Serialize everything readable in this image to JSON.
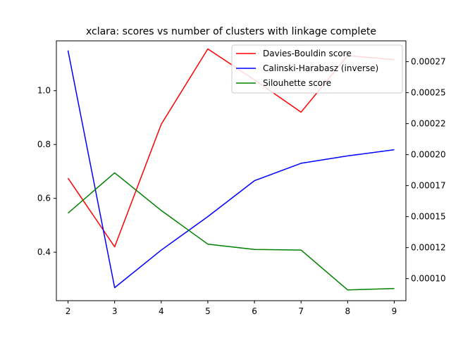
{
  "chart_data": {
    "type": "line",
    "title": "xclara: scores vs number of clusters with linkage complete",
    "x": [
      2,
      3,
      4,
      5,
      6,
      7,
      8,
      9
    ],
    "x_ticks": [
      "2",
      "3",
      "4",
      "5",
      "6",
      "7",
      "8",
      "9"
    ],
    "xlim": [
      1.75,
      9.25
    ],
    "left_axis": {
      "ylim": [
        0.22,
        1.185
      ],
      "ticks": [
        0.4,
        0.6,
        0.8,
        1.0
      ],
      "tick_labels": [
        "0.4",
        "0.6",
        "0.8",
        "1.0"
      ]
    },
    "right_axis": {
      "ylim": [
        8.22e-05,
        0.0002918
      ],
      "ticks": [
        0.0001,
        0.000125,
        0.00015,
        0.000175,
        0.0002,
        0.000225,
        0.00025,
        0.000275
      ],
      "tick_labels": [
        "0.00010",
        "0.00012",
        "0.00015",
        "0.00017",
        "0.00020",
        "0.00022",
        "0.00025",
        "0.00027"
      ]
    },
    "series": [
      {
        "name": "Davies-Bouldin score",
        "color": "#ff0000",
        "axis": "left",
        "values": [
          0.675,
          0.42,
          0.875,
          1.155,
          1.04,
          0.92,
          1.13,
          1.115
        ]
      },
      {
        "name": "Calinski-Harabasz (inverse)",
        "color": "#0000ff",
        "axis": "right",
        "values": [
          0.000284,
          9.27e-05,
          0.000123,
          0.00015,
          0.000179,
          0.000193,
          0.000199,
          0.000204
        ]
      },
      {
        "name": "Silouhette score",
        "color": "#008000",
        "axis": "left",
        "values": [
          0.545,
          0.695,
          0.555,
          0.43,
          0.41,
          0.408,
          0.26,
          0.265
        ]
      }
    ],
    "legend_position": "top-right",
    "grid": false
  }
}
